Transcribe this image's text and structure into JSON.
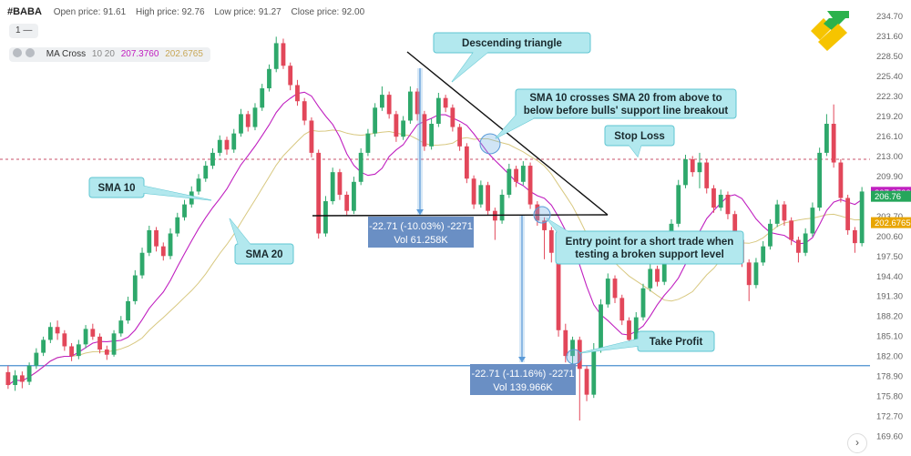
{
  "header": {
    "symbol": "#BABA",
    "open": "Open price: 91.61",
    "high": "High price: 92.76",
    "low": "Low price: 91.27",
    "close": "Close price: 92.00"
  },
  "controls": {
    "interval": "1 —"
  },
  "indicator": {
    "name": "MA Cross",
    "params": "10 20",
    "value1": "207.3760",
    "value2": "202.6765",
    "color1": "#c020c0",
    "color2": "#d8c880"
  },
  "chart_data": {
    "type": "candlestick",
    "ylim": [
      169.6,
      235.5
    ],
    "y_ticks": [
      "234.70",
      "231.60",
      "228.50",
      "225.40",
      "222.30",
      "219.20",
      "216.10",
      "213.00",
      "209.90",
      "206.80",
      "203.70",
      "200.60",
      "197.50",
      "194.40",
      "191.30",
      "188.20",
      "185.10",
      "182.00",
      "178.90",
      "175.80",
      "172.70",
      "169.60"
    ],
    "price_labels": [
      {
        "text": "207.3760",
        "value": 207.376,
        "color": "#c020c0"
      },
      {
        "text": "206.76",
        "value": 206.76,
        "color": "#26a65b"
      },
      {
        "text": "202.6765",
        "value": 202.6765,
        "color": "#e8a500"
      }
    ],
    "levels": {
      "stop_loss": 212.5,
      "take_profit": 180.5,
      "support": 202.3
    },
    "triangle_top": [
      {
        "t": 58,
        "v": 228.0
      },
      {
        "t": 84,
        "v": 202.3
      }
    ],
    "support_line": [
      {
        "t": 44,
        "v": 202.0
      },
      {
        "t": 84,
        "v": 202.3
      }
    ],
    "candles": [
      [
        179.5,
        177.5,
        180.5,
        176.9
      ],
      [
        177.5,
        179.0,
        179.8,
        176.6
      ],
      [
        179.0,
        178.0,
        179.6,
        177.0
      ],
      [
        178.0,
        180.5,
        181.0,
        177.5
      ],
      [
        180.5,
        182.5,
        183.2,
        180.0
      ],
      [
        182.5,
        184.5,
        185.0,
        182.0
      ],
      [
        184.5,
        186.5,
        187.2,
        184.0
      ],
      [
        186.5,
        185.5,
        187.5,
        184.5
      ],
      [
        185.5,
        183.5,
        186.0,
        182.8
      ],
      [
        183.5,
        182.0,
        184.0,
        181.2
      ],
      [
        182.0,
        183.8,
        184.5,
        181.5
      ],
      [
        183.8,
        186.2,
        186.8,
        183.2
      ],
      [
        186.2,
        185.0,
        187.0,
        184.5
      ],
      [
        185.0,
        183.0,
        185.5,
        182.4
      ],
      [
        183.0,
        182.2,
        183.6,
        181.4
      ],
      [
        182.2,
        185.5,
        186.0,
        181.9
      ],
      [
        185.5,
        187.5,
        188.2,
        185.0
      ],
      [
        187.5,
        190.5,
        191.2,
        187.0
      ],
      [
        190.5,
        194.5,
        195.3,
        190.0
      ],
      [
        194.5,
        198.0,
        198.8,
        194.0
      ],
      [
        198.0,
        201.5,
        202.2,
        197.5
      ],
      [
        201.5,
        199.0,
        202.0,
        198.2
      ],
      [
        199.0,
        197.5,
        199.6,
        196.8
      ],
      [
        197.5,
        201.0,
        201.8,
        197.0
      ],
      [
        201.0,
        203.5,
        204.2,
        200.5
      ],
      [
        203.5,
        205.5,
        206.2,
        203.0
      ],
      [
        205.5,
        207.5,
        208.3,
        205.0
      ],
      [
        207.5,
        209.5,
        210.2,
        207.0
      ],
      [
        209.5,
        211.5,
        212.2,
        209.0
      ],
      [
        211.5,
        213.5,
        214.2,
        211.0
      ],
      [
        213.5,
        215.5,
        216.2,
        213.0
      ],
      [
        215.5,
        214.0,
        216.0,
        213.2
      ],
      [
        214.0,
        216.5,
        217.2,
        213.5
      ],
      [
        216.5,
        219.5,
        220.3,
        216.0
      ],
      [
        219.5,
        217.5,
        220.0,
        216.8
      ],
      [
        217.5,
        220.5,
        221.2,
        217.0
      ],
      [
        220.5,
        223.5,
        224.2,
        220.0
      ],
      [
        223.5,
        226.5,
        227.2,
        223.0
      ],
      [
        226.5,
        230.5,
        231.5,
        226.0
      ],
      [
        230.5,
        227.0,
        231.2,
        226.5
      ],
      [
        227.0,
        224.0,
        227.5,
        223.2
      ],
      [
        224.0,
        221.5,
        224.8,
        220.8
      ],
      [
        221.5,
        218.5,
        222.0,
        217.8
      ],
      [
        218.5,
        213.5,
        219.0,
        212.8
      ],
      [
        213.5,
        201.0,
        214.0,
        200.2
      ],
      [
        201.0,
        206.0,
        206.8,
        200.5
      ],
      [
        206.0,
        210.5,
        211.2,
        205.5
      ],
      [
        210.5,
        207.0,
        211.0,
        206.2
      ],
      [
        207.0,
        204.5,
        207.5,
        203.8
      ],
      [
        204.5,
        209.0,
        209.8,
        204.0
      ],
      [
        209.0,
        213.5,
        214.2,
        208.5
      ],
      [
        213.5,
        216.5,
        217.2,
        213.0
      ],
      [
        216.5,
        220.5,
        221.2,
        216.0
      ],
      [
        220.5,
        222.5,
        223.8,
        220.0
      ],
      [
        222.5,
        219.5,
        223.0,
        218.8
      ],
      [
        219.5,
        216.0,
        220.0,
        215.2
      ],
      [
        216.0,
        218.5,
        219.2,
        215.5
      ],
      [
        218.5,
        223.0,
        223.8,
        218.0
      ],
      [
        223.0,
        219.5,
        223.5,
        218.5
      ],
      [
        219.5,
        214.5,
        220.0,
        213.8
      ],
      [
        214.5,
        218.0,
        218.8,
        214.0
      ],
      [
        218.0,
        222.0,
        222.8,
        217.5
      ],
      [
        222.0,
        220.5,
        222.5,
        219.8
      ],
      [
        220.5,
        217.5,
        221.0,
        216.8
      ],
      [
        217.5,
        214.5,
        218.0,
        213.8
      ],
      [
        214.5,
        209.5,
        215.0,
        208.8
      ],
      [
        209.5,
        205.5,
        210.0,
        204.8
      ],
      [
        205.5,
        208.5,
        209.2,
        205.0
      ],
      [
        208.5,
        204.5,
        209.0,
        203.8
      ],
      [
        204.5,
        203.0,
        205.0,
        200.0
      ],
      [
        203.0,
        207.0,
        207.8,
        202.5
      ],
      [
        207.0,
        211.0,
        211.8,
        206.5
      ],
      [
        211.0,
        209.0,
        211.5,
        208.2
      ],
      [
        209.0,
        211.5,
        212.2,
        208.5
      ],
      [
        211.5,
        205.5,
        212.0,
        204.8
      ],
      [
        205.5,
        203.0,
        206.0,
        202.2
      ],
      [
        203.0,
        201.5,
        203.5,
        197.0
      ],
      [
        201.5,
        198.0,
        202.0,
        196.5
      ],
      [
        198.0,
        186.0,
        198.5,
        185.0
      ],
      [
        186.0,
        182.0,
        187.0,
        181.0
      ],
      [
        182.0,
        184.5,
        185.0,
        179.5
      ],
      [
        184.5,
        180.0,
        185.0,
        172.0
      ],
      [
        180.0,
        176.0,
        180.5,
        175.0
      ],
      [
        176.0,
        183.0,
        184.0,
        175.5
      ],
      [
        183.0,
        190.0,
        190.8,
        182.5
      ],
      [
        190.0,
        194.0,
        194.8,
        189.5
      ],
      [
        194.0,
        191.0,
        194.5,
        190.2
      ],
      [
        191.0,
        187.5,
        191.5,
        186.8
      ],
      [
        187.5,
        184.5,
        188.0,
        183.8
      ],
      [
        184.5,
        188.0,
        188.8,
        184.0
      ],
      [
        188.0,
        192.5,
        193.2,
        187.5
      ],
      [
        192.5,
        195.5,
        196.2,
        192.0
      ],
      [
        195.5,
        193.5,
        196.0,
        192.8
      ],
      [
        193.5,
        197.5,
        198.2,
        193.0
      ],
      [
        197.5,
        202.5,
        203.2,
        197.0
      ],
      [
        202.5,
        208.5,
        209.3,
        202.0
      ],
      [
        208.5,
        212.5,
        213.2,
        208.0
      ],
      [
        212.5,
        210.5,
        213.0,
        209.8
      ],
      [
        210.5,
        212.0,
        213.5,
        208.0
      ],
      [
        212.0,
        208.0,
        212.5,
        207.2
      ],
      [
        208.0,
        205.0,
        208.5,
        204.2
      ],
      [
        205.0,
        207.0,
        207.8,
        204.5
      ],
      [
        207.0,
        204.0,
        207.5,
        203.2
      ],
      [
        204.0,
        200.0,
        204.5,
        199.2
      ],
      [
        200.0,
        196.5,
        200.5,
        195.8
      ],
      [
        196.5,
        193.0,
        197.0,
        190.5
      ],
      [
        193.0,
        196.5,
        197.2,
        192.5
      ],
      [
        196.5,
        199.0,
        199.8,
        196.0
      ],
      [
        199.0,
        202.5,
        203.2,
        198.5
      ],
      [
        202.5,
        205.5,
        206.2,
        202.0
      ],
      [
        205.5,
        203.0,
        206.0,
        202.2
      ],
      [
        203.0,
        200.0,
        203.5,
        199.2
      ],
      [
        200.0,
        198.0,
        200.5,
        196.5
      ],
      [
        198.0,
        201.0,
        201.8,
        197.5
      ],
      [
        201.0,
        205.0,
        205.8,
        200.5
      ],
      [
        205.0,
        213.5,
        214.3,
        204.5
      ],
      [
        213.5,
        218.0,
        219.5,
        213.0
      ],
      [
        218.0,
        212.0,
        221.0,
        211.2
      ],
      [
        212.0,
        206.5,
        212.5,
        205.8
      ],
      [
        206.5,
        201.5,
        207.0,
        200.8
      ],
      [
        201.5,
        199.5,
        202.0,
        198.0
      ],
      [
        199.5,
        207.5,
        208.2,
        199.0
      ]
    ]
  },
  "annotations": {
    "descending_triangle": "Descending triangle",
    "sma_cross_line1": "SMA 10 crosses SMA 20 from above to",
    "sma_cross_line2": "below before bulls' support line breakout",
    "stop_loss": "Stop Loss",
    "sma10": "SMA 10",
    "sma20": "SMA 20",
    "entry_line1": "Entry point for a short trade when",
    "entry_line2": "testing a broken support level",
    "take_profit": "Take Profit",
    "measure1_line1": "-22.71 (-10.03%) -2271",
    "measure1_line2": "Vol 61.258K",
    "measure2_line1": "-22.71 (-11.16%) -2271",
    "measure2_line2": "Vol 139.966K"
  },
  "colors": {
    "up": "#2ea86b",
    "down": "#e2475a",
    "box": "#b2e8ee",
    "box_border": "#5fc6d2",
    "measure": "#6a8fc4"
  }
}
